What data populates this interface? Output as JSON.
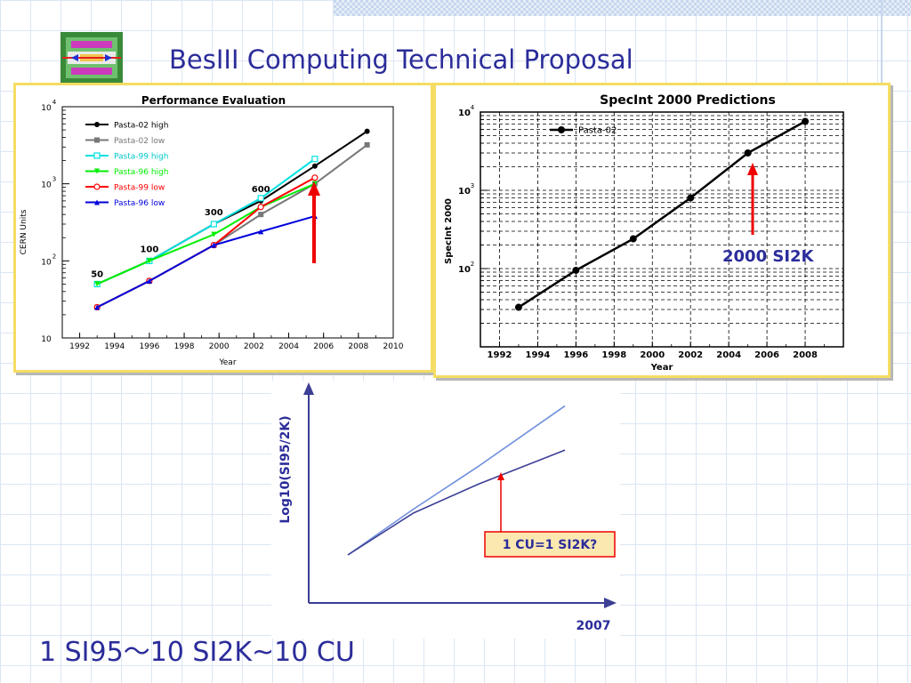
{
  "slide": {
    "title": "BesIII Computing Technical Proposal",
    "footer": "1 SI95～10 SI2K~10 CU",
    "accent_color": "#2b2c9a",
    "panel_border_color": "#f5dc63"
  },
  "chart_data": [
    {
      "type": "line",
      "title": "Performance Evaluation",
      "xlabel": "Year",
      "ylabel": "CERN Units",
      "xlim": [
        1991,
        2010
      ],
      "ylim": [
        10,
        10000
      ],
      "log_y": true,
      "grid": false,
      "legend_position": "top-left",
      "x_ticks": [
        "1992",
        "1994",
        "1996",
        "1998",
        "2000",
        "2002",
        "2004",
        "2006",
        "2008",
        "2010"
      ],
      "y_ticks": [
        {
          "base": "10",
          "exp": "",
          "value": 10
        },
        {
          "base": "10",
          "exp": "2",
          "value": 100
        },
        {
          "base": "10",
          "exp": "3",
          "value": 1000
        },
        {
          "base": "10",
          "exp": "4",
          "value": 10000
        }
      ],
      "annotations": [
        {
          "text": "50",
          "x": 1993,
          "y": 62
        },
        {
          "text": "100",
          "x": 1996,
          "y": 130
        },
        {
          "text": "300",
          "x": 1999.7,
          "y": 390
        },
        {
          "text": "600",
          "x": 2002.4,
          "y": 780
        }
      ],
      "series": [
        {
          "name": "Pasta-02 high",
          "color": "#000000",
          "marker": "circle-filled",
          "x": [
            1993,
            1996,
            1999.7,
            2002.4,
            2005.5,
            2008.5
          ],
          "y": [
            50,
            100,
            300,
            600,
            1700,
            4800
          ]
        },
        {
          "name": "Pasta-02 low",
          "color": "#777777",
          "marker": "square-filled",
          "x": [
            1993,
            1996,
            1999.7,
            2002.4,
            2005.5,
            2008.5
          ],
          "y": [
            25,
            55,
            160,
            400,
            1000,
            3200
          ]
        },
        {
          "name": "Pasta-99 high",
          "color": "#00e0e0",
          "marker": "square-open",
          "x": [
            1993,
            1996,
            1999.7,
            2002.4,
            2005.5
          ],
          "y": [
            50,
            100,
            300,
            650,
            2100
          ]
        },
        {
          "name": "Pasta-96 high",
          "color": "#00ee00",
          "marker": "triangle-down",
          "x": [
            1993,
            1996,
            1999.7,
            2002.4,
            2005.5
          ],
          "y": [
            50,
            100,
            220,
            500,
            1000
          ]
        },
        {
          "name": "Pasta-99 low",
          "color": "#ff0000",
          "marker": "circle-open",
          "x": [
            1993,
            1996,
            1999.7,
            2002.4,
            2005.5
          ],
          "y": [
            25,
            55,
            160,
            500,
            1200
          ]
        },
        {
          "name": "Pasta-96 low",
          "color": "#0000dd",
          "marker": "triangle-up",
          "x": [
            1993,
            1996,
            1999.7,
            2002.4,
            2005.5
          ],
          "y": [
            25,
            55,
            160,
            240,
            380
          ]
        }
      ]
    },
    {
      "type": "line",
      "title": "SpecInt 2000 Predictions",
      "xlabel": "Year",
      "ylabel": "SpecInt 2000",
      "xlim": [
        1991,
        2010
      ],
      "ylim": [
        10,
        10000
      ],
      "log_y": true,
      "grid": true,
      "legend_position": "top-left",
      "x_ticks": [
        "1992",
        "1994",
        "1996",
        "1998",
        "2000",
        "2002",
        "2004",
        "2006",
        "2008"
      ],
      "y_ticks": [
        {
          "base": "10",
          "exp": "2",
          "value": 100
        },
        {
          "base": "10",
          "exp": "3",
          "value": 1000
        },
        {
          "base": "10",
          "exp": "4",
          "value": 10000
        }
      ],
      "annotation": "2000 SI2K",
      "series": [
        {
          "name": "Pasta-02",
          "color": "#000000",
          "marker": "circle-filled",
          "x": [
            1993,
            1996,
            1999,
            2002,
            2005,
            2008
          ],
          "y": [
            32,
            95,
            240,
            800,
            3000,
            7600
          ]
        }
      ]
    },
    {
      "type": "line",
      "title": "",
      "ylabel": "Log10(SI95/2K)",
      "xlabel": "2007",
      "callout": "1 CU=1 SI2K?",
      "series": [
        {
          "name": "",
          "color": "#6f8fdc",
          "x": [
            0,
            0.3,
            0.6,
            1.0
          ],
          "y": [
            0,
            0.36,
            0.7,
            1.18
          ]
        },
        {
          "name": "",
          "color": "#3c3f94",
          "x": [
            0,
            0.3,
            0.6,
            1.0
          ],
          "y": [
            0,
            0.33,
            0.56,
            0.83
          ]
        }
      ]
    }
  ]
}
